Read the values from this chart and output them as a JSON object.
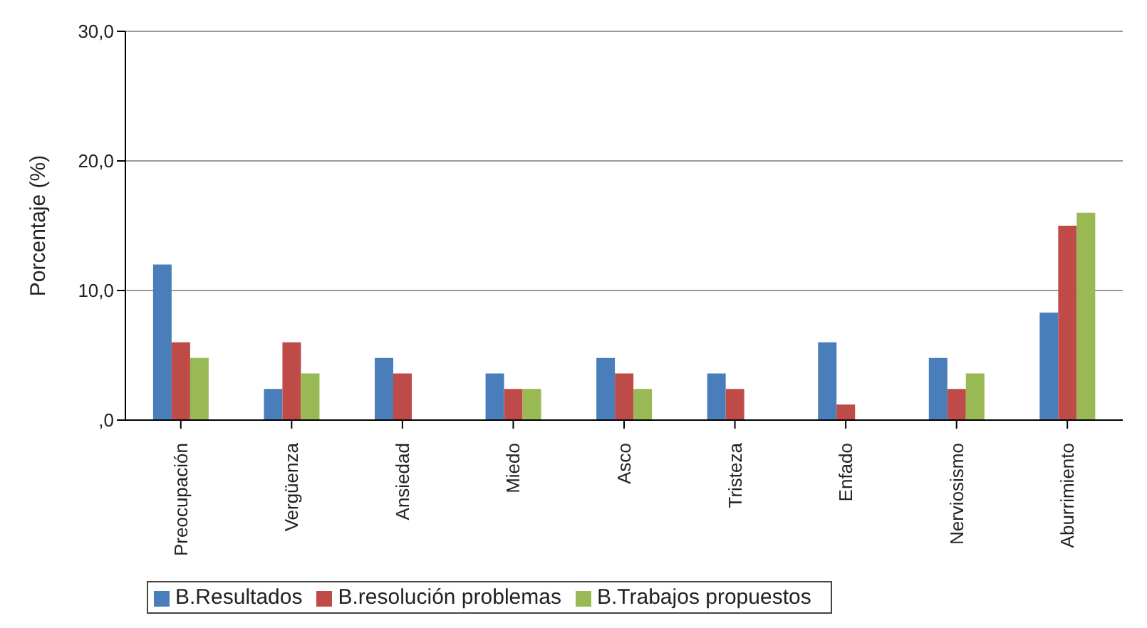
{
  "chart_data": {
    "type": "bar",
    "ylabel": "Porcentaje (%)",
    "categories": [
      "Preocupación",
      "Vergüenza",
      "Ansiedad",
      "Miedo",
      "Asco",
      "Tristeza",
      "Enfado",
      "Nerviosismo",
      "Aburrimiento"
    ],
    "series": [
      {
        "name": "B.Resultados",
        "color": "#4a7ebb",
        "values": [
          12.0,
          2.4,
          4.8,
          3.6,
          4.8,
          3.6,
          6.0,
          4.8,
          8.3
        ]
      },
      {
        "name": "B.resolución problemas",
        "color": "#be4b48",
        "values": [
          6.0,
          6.0,
          3.6,
          2.4,
          3.6,
          2.4,
          1.2,
          2.4,
          15.0
        ]
      },
      {
        "name": "B.Trabajos propuestos",
        "color": "#98b954",
        "values": [
          4.8,
          3.6,
          0,
          2.4,
          2.4,
          0,
          0,
          3.6,
          16.0
        ]
      }
    ],
    "ylim": [
      0,
      30
    ],
    "yticks": [
      {
        "value": 0,
        "label": ",0"
      },
      {
        "value": 10,
        "label": "10,0"
      },
      {
        "value": 20,
        "label": "20,0"
      },
      {
        "value": 30,
        "label": "30,0"
      }
    ],
    "grid": "y",
    "legend": "bottom"
  }
}
